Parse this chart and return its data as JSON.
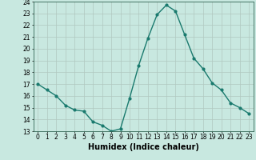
{
  "x": [
    0,
    1,
    2,
    3,
    4,
    5,
    6,
    7,
    8,
    9,
    10,
    11,
    12,
    13,
    14,
    15,
    16,
    17,
    18,
    19,
    20,
    21,
    22,
    23
  ],
  "y": [
    17,
    16.5,
    16,
    15.2,
    14.8,
    14.7,
    13.8,
    13.5,
    13.0,
    13.2,
    15.8,
    18.6,
    20.9,
    22.9,
    23.7,
    23.2,
    21.2,
    19.2,
    18.3,
    17.1,
    16.5,
    15.4,
    15.0,
    14.5
  ],
  "line_color": "#1a7a6e",
  "marker": "o",
  "markersize": 2,
  "linewidth": 1.0,
  "xlabel": "Humidex (Indice chaleur)",
  "xlabel_fontsize": 7,
  "xlabel_bold": true,
  "xlim": [
    -0.5,
    23.5
  ],
  "ylim": [
    13,
    24
  ],
  "yticks": [
    13,
    14,
    15,
    16,
    17,
    18,
    19,
    20,
    21,
    22,
    23,
    24
  ],
  "xticks": [
    0,
    1,
    2,
    3,
    4,
    5,
    6,
    7,
    8,
    9,
    10,
    11,
    12,
    13,
    14,
    15,
    16,
    17,
    18,
    19,
    20,
    21,
    22,
    23
  ],
  "background_color": "#c8e8e0",
  "grid_color": "#b0c8c0",
  "tick_fontsize": 5.5,
  "spine_color": "#336655"
}
